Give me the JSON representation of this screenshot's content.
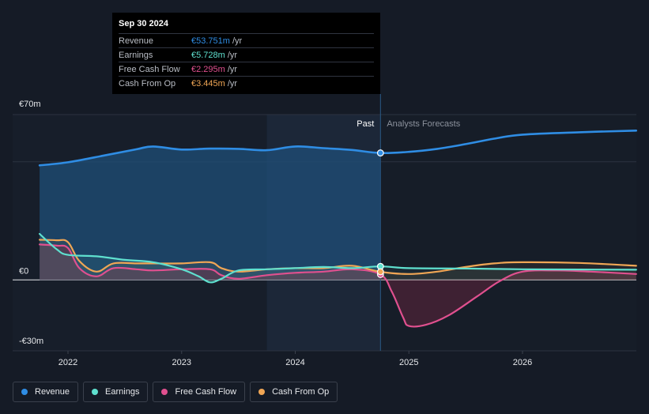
{
  "tooltip": {
    "date": "Sep 30 2024",
    "rows": [
      {
        "name": "Revenue",
        "value": "€53.751m",
        "unit": "/yr",
        "color": "#2f8de4"
      },
      {
        "name": "Earnings",
        "value": "€5.728m",
        "unit": "/yr",
        "color": "#5fe0cf"
      },
      {
        "name": "Free Cash Flow",
        "value": "€2.295m",
        "unit": "/yr",
        "color": "#e0508f"
      },
      {
        "name": "Cash From Op",
        "value": "€3.445m",
        "unit": "/yr",
        "color": "#f0a655"
      }
    ]
  },
  "legend": [
    {
      "label": "Revenue",
      "color": "#2f8de4"
    },
    {
      "label": "Earnings",
      "color": "#5fe0cf"
    },
    {
      "label": "Free Cash Flow",
      "color": "#e0508f"
    },
    {
      "label": "Cash From Op",
      "color": "#f0a655"
    }
  ],
  "chart_data": {
    "type": "line",
    "title": "",
    "currency": "€",
    "y_unit": "m",
    "ylim": [
      -30,
      70
    ],
    "y_tick_labels": [
      {
        "value": 70,
        "label": "€70m"
      },
      {
        "value": 0,
        "label": "€0"
      },
      {
        "value": -30,
        "label": "-€30m"
      }
    ],
    "xlim": [
      2021.5,
      2027.0
    ],
    "x_ticks": [
      {
        "value": 2022,
        "label": "2022"
      },
      {
        "value": 2023,
        "label": "2023"
      },
      {
        "value": 2024,
        "label": "2024"
      },
      {
        "value": 2025,
        "label": "2025"
      },
      {
        "value": 2026,
        "label": "2026"
      }
    ],
    "past_label": "Past",
    "forecast_label": "Analysts Forecasts",
    "split_x": 2024.75,
    "highlight_start_x": 2023.75,
    "series": [
      {
        "name": "Revenue",
        "color": "#2f8de4",
        "points": [
          [
            2021.75,
            48.5
          ],
          [
            2022.0,
            49.8
          ],
          [
            2022.3,
            52.5
          ],
          [
            2022.6,
            55.3
          ],
          [
            2022.75,
            56.5
          ],
          [
            2023.0,
            55.2
          ],
          [
            2023.25,
            55.6
          ],
          [
            2023.5,
            55.5
          ],
          [
            2023.75,
            54.9
          ],
          [
            2024.0,
            56.5
          ],
          [
            2024.25,
            55.8
          ],
          [
            2024.5,
            55.0
          ],
          [
            2024.75,
            53.751
          ],
          [
            2025.0,
            54.2
          ],
          [
            2025.25,
            55.5
          ],
          [
            2025.5,
            57.5
          ],
          [
            2025.75,
            59.8
          ],
          [
            2026.0,
            61.5
          ],
          [
            2026.5,
            62.5
          ],
          [
            2027.0,
            63.2
          ]
        ]
      },
      {
        "name": "Earnings",
        "color": "#5fe0cf",
        "points": [
          [
            2021.75,
            19.5
          ],
          [
            2021.9,
            13.0
          ],
          [
            2022.0,
            10.6
          ],
          [
            2022.25,
            10.0
          ],
          [
            2022.5,
            8.5
          ],
          [
            2022.75,
            7.5
          ],
          [
            2023.0,
            4.5
          ],
          [
            2023.15,
            1.5
          ],
          [
            2023.25,
            -1.0
          ],
          [
            2023.35,
            0.5
          ],
          [
            2023.5,
            4.0
          ],
          [
            2023.75,
            4.5
          ],
          [
            2024.0,
            5.0
          ],
          [
            2024.25,
            5.5
          ],
          [
            2024.5,
            5.0
          ],
          [
            2024.75,
            5.728
          ],
          [
            2025.0,
            5.0
          ],
          [
            2025.5,
            4.8
          ],
          [
            2026.0,
            4.5
          ],
          [
            2026.5,
            4.4
          ],
          [
            2027.0,
            4.3
          ]
        ]
      },
      {
        "name": "Free Cash Flow",
        "color": "#e0508f",
        "points": [
          [
            2021.75,
            15.0
          ],
          [
            2021.9,
            14.5
          ],
          [
            2022.0,
            13.5
          ],
          [
            2022.1,
            5.0
          ],
          [
            2022.25,
            1.5
          ],
          [
            2022.4,
            5.0
          ],
          [
            2022.6,
            4.5
          ],
          [
            2022.75,
            4.0
          ],
          [
            2023.0,
            4.5
          ],
          [
            2023.25,
            4.5
          ],
          [
            2023.35,
            2.0
          ],
          [
            2023.5,
            0.5
          ],
          [
            2023.75,
            2.0
          ],
          [
            2024.0,
            3.0
          ],
          [
            2024.25,
            3.5
          ],
          [
            2024.5,
            4.5
          ],
          [
            2024.75,
            2.295
          ],
          [
            2024.85,
            -5.0
          ],
          [
            2024.95,
            -16.0
          ],
          [
            2025.0,
            -19.5
          ],
          [
            2025.15,
            -19.0
          ],
          [
            2025.35,
            -15.0
          ],
          [
            2025.6,
            -7.0
          ],
          [
            2025.8,
            -0.5
          ],
          [
            2026.0,
            3.5
          ],
          [
            2026.3,
            4.0
          ],
          [
            2026.6,
            3.5
          ],
          [
            2027.0,
            2.5
          ]
        ]
      },
      {
        "name": "Cash From Op",
        "color": "#f0a655",
        "points": [
          [
            2021.75,
            17.0
          ],
          [
            2021.9,
            16.8
          ],
          [
            2022.0,
            16.0
          ],
          [
            2022.1,
            8.0
          ],
          [
            2022.25,
            3.5
          ],
          [
            2022.4,
            7.0
          ],
          [
            2022.6,
            7.0
          ],
          [
            2022.75,
            7.0
          ],
          [
            2023.0,
            7.0
          ],
          [
            2023.25,
            7.5
          ],
          [
            2023.35,
            5.0
          ],
          [
            2023.5,
            3.5
          ],
          [
            2023.75,
            4.5
          ],
          [
            2024.0,
            5.0
          ],
          [
            2024.25,
            5.0
          ],
          [
            2024.5,
            6.0
          ],
          [
            2024.75,
            3.445
          ],
          [
            2025.0,
            2.5
          ],
          [
            2025.25,
            3.5
          ],
          [
            2025.5,
            5.5
          ],
          [
            2025.75,
            7.0
          ],
          [
            2026.0,
            7.5
          ],
          [
            2026.5,
            7.2
          ],
          [
            2027.0,
            6.0
          ]
        ]
      }
    ]
  }
}
